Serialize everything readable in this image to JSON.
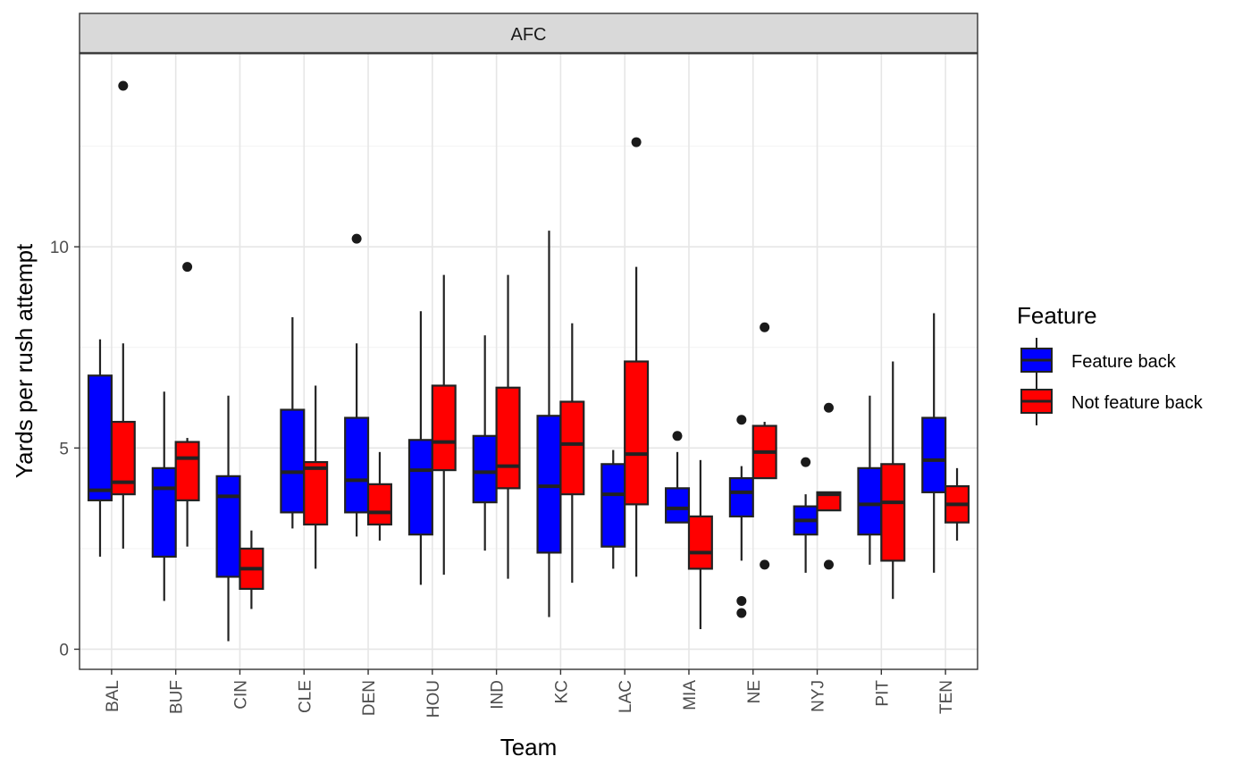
{
  "chart_data": {
    "type": "boxplot",
    "panel_title": "AFC",
    "xlabel": "Team",
    "ylabel": "Yards per rush attempt",
    "ylim": [
      -0.5,
      14.8
    ],
    "yticks": [
      0,
      5,
      10
    ],
    "grid": true,
    "legend": {
      "title": "Feature",
      "position": "right"
    },
    "categories": [
      "BAL",
      "BUF",
      "CIN",
      "CLE",
      "DEN",
      "HOU",
      "IND",
      "KC",
      "LAC",
      "MIA",
      "NE",
      "NYJ",
      "PIT",
      "TEN"
    ],
    "series": [
      {
        "name": "Feature back",
        "color": "#0000ff",
        "boxes": [
          {
            "team": "BAL",
            "whisker_low": 2.3,
            "q1": 3.7,
            "median": 3.95,
            "q3": 6.8,
            "whisker_high": 7.7,
            "outliers": []
          },
          {
            "team": "BUF",
            "whisker_low": 1.2,
            "q1": 2.3,
            "median": 4.0,
            "q3": 4.5,
            "whisker_high": 6.4,
            "outliers": []
          },
          {
            "team": "CIN",
            "whisker_low": 0.2,
            "q1": 1.8,
            "median": 3.8,
            "q3": 4.3,
            "whisker_high": 6.3,
            "outliers": []
          },
          {
            "team": "CLE",
            "whisker_low": 3.0,
            "q1": 3.4,
            "median": 4.4,
            "q3": 5.95,
            "whisker_high": 8.25,
            "outliers": []
          },
          {
            "team": "DEN",
            "whisker_low": 2.8,
            "q1": 3.4,
            "median": 4.2,
            "q3": 5.75,
            "whisker_high": 7.6,
            "outliers": [
              10.2
            ]
          },
          {
            "team": "HOU",
            "whisker_low": 1.6,
            "q1": 2.85,
            "median": 4.45,
            "q3": 5.2,
            "whisker_high": 8.4,
            "outliers": []
          },
          {
            "team": "IND",
            "whisker_low": 2.45,
            "q1": 3.65,
            "median": 4.4,
            "q3": 5.3,
            "whisker_high": 7.8,
            "outliers": []
          },
          {
            "team": "KC",
            "whisker_low": 0.8,
            "q1": 2.4,
            "median": 4.05,
            "q3": 5.8,
            "whisker_high": 10.4,
            "outliers": []
          },
          {
            "team": "LAC",
            "whisker_low": 2.0,
            "q1": 2.55,
            "median": 3.85,
            "q3": 4.6,
            "whisker_high": 4.95,
            "outliers": []
          },
          {
            "team": "MIA",
            "whisker_low": 3.15,
            "q1": 3.15,
            "median": 3.5,
            "q3": 4.0,
            "whisker_high": 4.9,
            "outliers": [
              5.3
            ]
          },
          {
            "team": "NE",
            "whisker_low": 2.2,
            "q1": 3.3,
            "median": 3.9,
            "q3": 4.25,
            "whisker_high": 4.55,
            "outliers": [
              5.7,
              1.2,
              0.9
            ]
          },
          {
            "team": "NYJ",
            "whisker_low": 1.9,
            "q1": 2.85,
            "median": 3.2,
            "q3": 3.55,
            "whisker_high": 3.85,
            "outliers": [
              4.65
            ]
          },
          {
            "team": "PIT",
            "whisker_low": 2.1,
            "q1": 2.85,
            "median": 3.6,
            "q3": 4.5,
            "whisker_high": 6.3,
            "outliers": []
          },
          {
            "team": "TEN",
            "whisker_low": 1.9,
            "q1": 3.9,
            "median": 4.7,
            "q3": 5.75,
            "whisker_high": 8.35,
            "outliers": []
          }
        ]
      },
      {
        "name": "Not feature back",
        "color": "#ff0000",
        "boxes": [
          {
            "team": "BAL",
            "whisker_low": 2.5,
            "q1": 3.85,
            "median": 4.15,
            "q3": 5.65,
            "whisker_high": 7.6,
            "outliers": [
              14.0
            ]
          },
          {
            "team": "BUF",
            "whisker_low": 2.55,
            "q1": 3.7,
            "median": 4.75,
            "q3": 5.15,
            "whisker_high": 5.25,
            "outliers": [
              9.5
            ]
          },
          {
            "team": "CIN",
            "whisker_low": 1.0,
            "q1": 1.5,
            "median": 2.0,
            "q3": 2.5,
            "whisker_high": 2.95,
            "outliers": []
          },
          {
            "team": "CLE",
            "whisker_low": 2.0,
            "q1": 3.1,
            "median": 4.5,
            "q3": 4.65,
            "whisker_high": 6.55,
            "outliers": []
          },
          {
            "team": "DEN",
            "whisker_low": 2.7,
            "q1": 3.1,
            "median": 3.4,
            "q3": 4.1,
            "whisker_high": 4.9,
            "outliers": []
          },
          {
            "team": "HOU",
            "whisker_low": 1.85,
            "q1": 4.45,
            "median": 5.15,
            "q3": 6.55,
            "whisker_high": 9.3,
            "outliers": []
          },
          {
            "team": "IND",
            "whisker_low": 1.75,
            "q1": 4.0,
            "median": 4.55,
            "q3": 6.5,
            "whisker_high": 9.3,
            "outliers": []
          },
          {
            "team": "KC",
            "whisker_low": 1.65,
            "q1": 3.85,
            "median": 5.1,
            "q3": 6.15,
            "whisker_high": 8.1,
            "outliers": []
          },
          {
            "team": "LAC",
            "whisker_low": 1.8,
            "q1": 3.6,
            "median": 4.85,
            "q3": 7.15,
            "whisker_high": 9.5,
            "outliers": [
              12.6
            ]
          },
          {
            "team": "MIA",
            "whisker_low": 0.5,
            "q1": 2.0,
            "median": 2.4,
            "q3": 3.3,
            "whisker_high": 4.7,
            "outliers": []
          },
          {
            "team": "NE",
            "whisker_low": 4.25,
            "q1": 4.25,
            "median": 4.9,
            "q3": 5.55,
            "whisker_high": 5.65,
            "outliers": [
              8.0,
              2.1
            ]
          },
          {
            "team": "NYJ",
            "whisker_low": 3.45,
            "q1": 3.45,
            "median": 3.85,
            "q3": 3.9,
            "whisker_high": 3.9,
            "outliers": [
              6.0,
              2.1
            ]
          },
          {
            "team": "PIT",
            "whisker_low": 1.25,
            "q1": 2.2,
            "median": 3.65,
            "q3": 4.6,
            "whisker_high": 7.15,
            "outliers": []
          },
          {
            "team": "TEN",
            "whisker_low": 2.7,
            "q1": 3.15,
            "median": 3.6,
            "q3": 4.05,
            "whisker_high": 4.5,
            "outliers": []
          }
        ]
      }
    ]
  }
}
